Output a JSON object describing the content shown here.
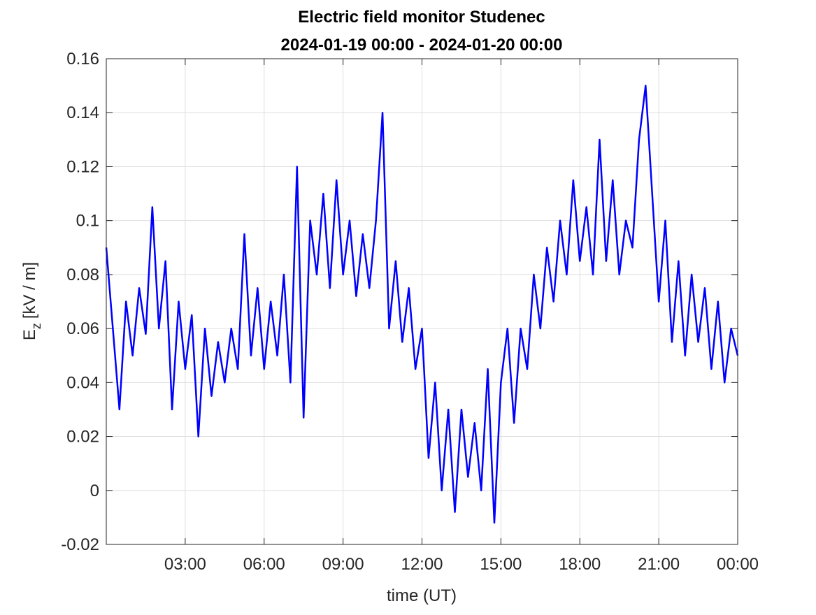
{
  "chart_data": {
    "type": "line",
    "title": "Electric field monitor Studenec",
    "subtitle": "2024-01-19 00:00 - 2024-01-20 00:00",
    "xlabel": "time (UT)",
    "ylabel": {
      "main": "E",
      "sub": "z",
      "rest": "[kV / m]"
    },
    "xlim": [
      0,
      24
    ],
    "xticks": [
      {
        "value": 3,
        "label": "03:00"
      },
      {
        "value": 6,
        "label": "06:00"
      },
      {
        "value": 9,
        "label": "09:00"
      },
      {
        "value": 12,
        "label": "12:00"
      },
      {
        "value": 15,
        "label": "15:00"
      },
      {
        "value": 18,
        "label": "18:00"
      },
      {
        "value": 21,
        "label": "21:00"
      },
      {
        "value": 24,
        "label": "00:00"
      }
    ],
    "ylim": [
      -0.02,
      0.16
    ],
    "yticks": [
      -0.02,
      0,
      0.02,
      0.04,
      0.06,
      0.08,
      0.1,
      0.12,
      0.14,
      0.16
    ],
    "grid": true,
    "x": [
      0,
      0.25,
      0.5,
      0.75,
      1,
      1.25,
      1.5,
      1.75,
      2,
      2.25,
      2.5,
      2.75,
      3,
      3.25,
      3.5,
      3.75,
      4,
      4.25,
      4.5,
      4.75,
      5,
      5.25,
      5.5,
      5.75,
      6,
      6.25,
      6.5,
      6.75,
      7,
      7.25,
      7.5,
      7.75,
      8,
      8.25,
      8.5,
      8.75,
      9,
      9.25,
      9.5,
      9.75,
      10,
      10.25,
      10.5,
      10.75,
      11,
      11.25,
      11.5,
      11.75,
      12,
      12.25,
      12.5,
      12.75,
      13,
      13.25,
      13.5,
      13.75,
      14,
      14.25,
      14.5,
      14.75,
      15,
      15.25,
      15.5,
      15.75,
      16,
      16.25,
      16.5,
      16.75,
      17,
      17.25,
      17.5,
      17.75,
      18,
      18.25,
      18.5,
      18.75,
      19,
      19.25,
      19.5,
      19.75,
      20,
      20.25,
      20.5,
      20.75,
      21,
      21.25,
      21.5,
      21.75,
      22,
      22.25,
      22.5,
      22.75,
      23,
      23.25,
      23.5,
      23.75,
      24
    ],
    "series": [
      {
        "color": "#0000ff",
        "values": [
          0.09,
          0.06,
          0.03,
          0.07,
          0.05,
          0.075,
          0.058,
          0.105,
          0.06,
          0.085,
          0.03,
          0.07,
          0.045,
          0.065,
          0.02,
          0.06,
          0.035,
          0.055,
          0.04,
          0.06,
          0.045,
          0.095,
          0.05,
          0.075,
          0.045,
          0.07,
          0.05,
          0.08,
          0.04,
          0.12,
          0.027,
          0.1,
          0.08,
          0.11,
          0.075,
          0.115,
          0.08,
          0.1,
          0.072,
          0.095,
          0.075,
          0.1,
          0.14,
          0.06,
          0.085,
          0.055,
          0.075,
          0.045,
          0.06,
          0.012,
          0.04,
          0.0,
          0.03,
          -0.008,
          0.03,
          0.005,
          0.025,
          0.0,
          0.045,
          -0.012,
          0.04,
          0.06,
          0.025,
          0.06,
          0.045,
          0.08,
          0.06,
          0.09,
          0.07,
          0.1,
          0.08,
          0.115,
          0.085,
          0.105,
          0.08,
          0.13,
          0.085,
          0.115,
          0.08,
          0.1,
          0.09,
          0.13,
          0.15,
          0.11,
          0.07,
          0.1,
          0.055,
          0.085,
          0.05,
          0.08,
          0.055,
          0.075,
          0.045,
          0.07,
          0.04,
          0.06,
          0.05
        ]
      }
    ]
  }
}
